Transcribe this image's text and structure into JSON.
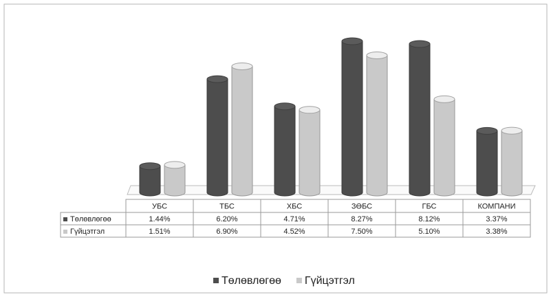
{
  "chart_data": {
    "type": "bar",
    "categories": [
      "УБС",
      "ТБС",
      "ХБС",
      "ЗӨБС",
      "ГБС",
      "КОМПАНИ"
    ],
    "series": [
      {
        "name": "Төлөвлөгөө",
        "color": "#4d4d4d",
        "values": [
          1.44,
          6.2,
          4.71,
          8.27,
          8.12,
          3.37
        ],
        "value_labels": [
          "1.44%",
          "6.20%",
          "4.71%",
          "8.27%",
          "8.12%",
          "3.37%"
        ]
      },
      {
        "name": "Гүйцэтгэл",
        "color": "#c9c9c9",
        "values": [
          1.51,
          6.9,
          4.52,
          7.5,
          5.1,
          3.38
        ],
        "value_labels": [
          "1.51%",
          "6.90%",
          "4.52%",
          "7.50%",
          "5.10%",
          "3.38%"
        ]
      }
    ],
    "legend": "bottom"
  }
}
